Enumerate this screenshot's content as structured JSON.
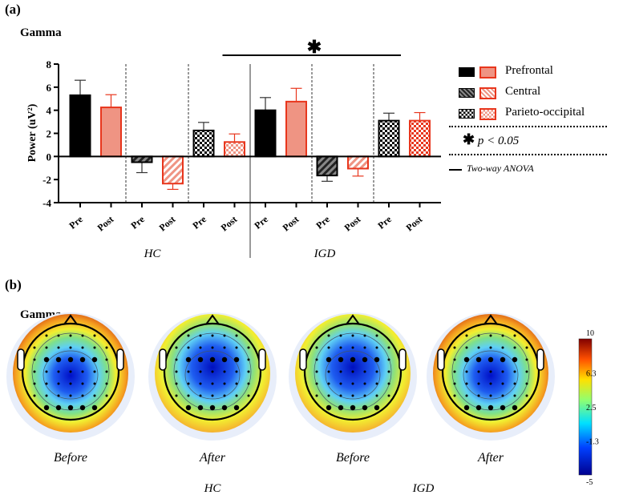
{
  "panel_a": {
    "label": "(a)",
    "title": "Gamma",
    "significance_star": "✱"
  },
  "panel_b": {
    "label": "(b)",
    "title": "Gamma"
  },
  "legend": {
    "items": [
      {
        "label": "Prefrontal",
        "pattern": "solid"
      },
      {
        "label": "Central",
        "pattern": "hatch"
      },
      {
        "label": "Parieto-occipital",
        "pattern": "checker"
      }
    ],
    "p_star": "✱",
    "p_text": "p < 0.05",
    "anova_text": "Two-way ANOVA"
  },
  "colors": {
    "pre": "#000000",
    "post_edge": "#e8361d",
    "post_fill": "#ef9483"
  },
  "chart_data": {
    "type": "bar",
    "title": "Gamma",
    "ylabel": "Power (uV²)",
    "xlabel": "",
    "ylim": [
      -4,
      8
    ],
    "yticks": [
      -4,
      -2,
      0,
      2,
      4,
      6,
      8
    ],
    "groups": [
      "HC",
      "IGD"
    ],
    "regions": [
      "Prefrontal",
      "Central",
      "Parieto-occipital"
    ],
    "categories": [
      "Pre",
      "Post",
      "Pre",
      "Post",
      "Pre",
      "Post",
      "Pre",
      "Post",
      "Pre",
      "Post",
      "Pre",
      "Post"
    ],
    "bars": [
      {
        "group": "HC",
        "region": "Prefrontal",
        "time": "Pre",
        "value": 5.3,
        "error": 1.3
      },
      {
        "group": "HC",
        "region": "Prefrontal",
        "time": "Post",
        "value": 4.25,
        "error": 1.1
      },
      {
        "group": "HC",
        "region": "Central",
        "time": "Pre",
        "value": -0.5,
        "error": 0.9
      },
      {
        "group": "HC",
        "region": "Central",
        "time": "Post",
        "value": -2.35,
        "error": 0.5
      },
      {
        "group": "HC",
        "region": "Parieto-occipital",
        "time": "Pre",
        "value": 2.25,
        "error": 0.7
      },
      {
        "group": "HC",
        "region": "Parieto-occipital",
        "time": "Post",
        "value": 1.25,
        "error": 0.7
      },
      {
        "group": "IGD",
        "region": "Prefrontal",
        "time": "Pre",
        "value": 4.0,
        "error": 1.1
      },
      {
        "group": "IGD",
        "region": "Prefrontal",
        "time": "Post",
        "value": 4.75,
        "error": 1.15
      },
      {
        "group": "IGD",
        "region": "Central",
        "time": "Pre",
        "value": -1.65,
        "error": 0.5
      },
      {
        "group": "IGD",
        "region": "Central",
        "time": "Post",
        "value": -1.05,
        "error": 0.65
      },
      {
        "group": "IGD",
        "region": "Parieto-occipital",
        "time": "Pre",
        "value": 3.1,
        "error": 0.65
      },
      {
        "group": "IGD",
        "region": "Parieto-occipital",
        "time": "Post",
        "value": 3.1,
        "error": 0.7
      }
    ],
    "significance": {
      "label": "✱",
      "from_bar": 5,
      "to_bar": 10
    }
  },
  "topomaps": {
    "maps": [
      {
        "label": "Before",
        "group": "HC",
        "edge": "hot"
      },
      {
        "label": "After",
        "group": "HC",
        "edge": "warm"
      },
      {
        "label": "Before",
        "group": "IGD",
        "edge": "warm"
      },
      {
        "label": "After",
        "group": "IGD",
        "edge": "hot"
      }
    ],
    "group_labels": [
      "HC",
      "IGD"
    ],
    "colorbar_ticks": [
      "10",
      "6.3",
      "2.5",
      "-1.3",
      "-5"
    ]
  }
}
